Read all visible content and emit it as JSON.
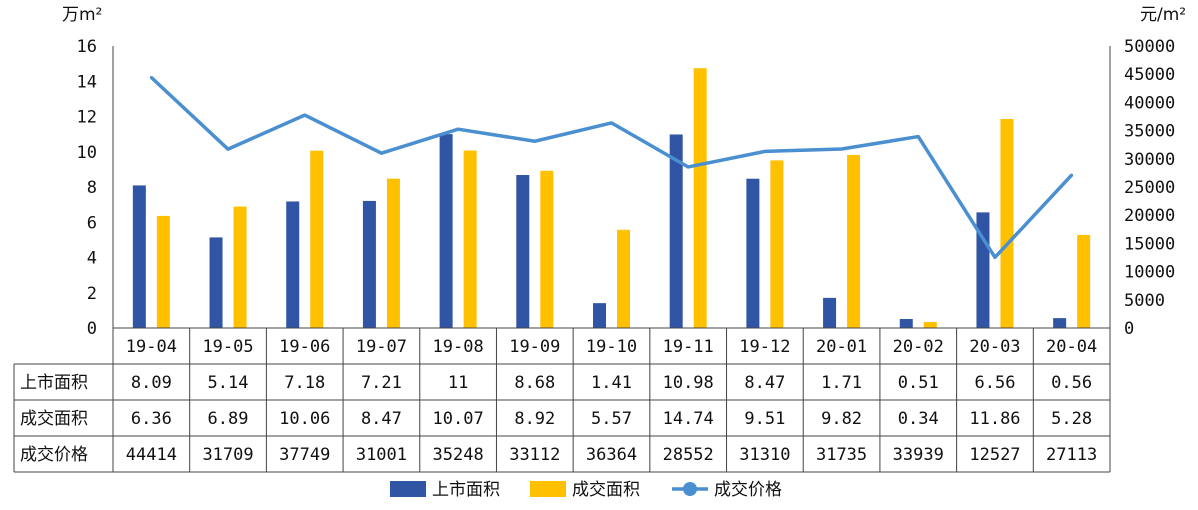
{
  "chart_data": {
    "type": "bar",
    "left_axis_unit": "万m²",
    "right_axis_unit": "元/m²",
    "categories": [
      "19-04",
      "19-05",
      "19-06",
      "19-07",
      "19-08",
      "19-09",
      "19-10",
      "19-11",
      "19-12",
      "20-01",
      "20-02",
      "20-03",
      "20-04"
    ],
    "y_left_ticks": [
      "0",
      "2",
      "4",
      "6",
      "8",
      "10",
      "12",
      "14",
      "16"
    ],
    "y_right_ticks": [
      "0",
      "5000",
      "10000",
      "15000",
      "20000",
      "25000",
      "30000",
      "35000",
      "40000",
      "45000",
      "50000"
    ],
    "ylim_left": [
      0,
      16
    ],
    "ylim_right": [
      0,
      50000
    ],
    "series": [
      {
        "name": "上市面积",
        "type": "bar",
        "axis": "left",
        "color": "#2f55a4",
        "values": [
          8.09,
          5.14,
          7.18,
          7.21,
          11,
          8.68,
          1.41,
          10.98,
          8.47,
          1.71,
          0.51,
          6.56,
          0.56
        ],
        "labels": [
          "8.09",
          "5.14",
          "7.18",
          "7.21",
          "11",
          "8.68",
          "1.41",
          "10.98",
          "8.47",
          "1.71",
          "0.51",
          "6.56",
          "0.56"
        ]
      },
      {
        "name": "成交面积",
        "type": "bar",
        "axis": "left",
        "color": "#ffc000",
        "values": [
          6.36,
          6.89,
          10.06,
          8.47,
          10.07,
          8.92,
          5.57,
          14.74,
          9.51,
          9.82,
          0.34,
          11.86,
          5.28
        ],
        "labels": [
          "6.36",
          "6.89",
          "10.06",
          "8.47",
          "10.07",
          "8.92",
          "5.57",
          "14.74",
          "9.51",
          "9.82",
          "0.34",
          "11.86",
          "5.28"
        ]
      },
      {
        "name": "成交价格",
        "type": "line",
        "axis": "right",
        "color": "#4a8fd0",
        "values": [
          44414,
          31709,
          37749,
          31001,
          35248,
          33112,
          36364,
          28552,
          31310,
          31735,
          33939,
          12527,
          27113
        ],
        "labels": [
          "44414",
          "31709",
          "37749",
          "31001",
          "35248",
          "33112",
          "36364",
          "28552",
          "31310",
          "31735",
          "33939",
          "12527",
          "27113"
        ]
      }
    ],
    "grid": false,
    "legend_position": "bottom"
  }
}
